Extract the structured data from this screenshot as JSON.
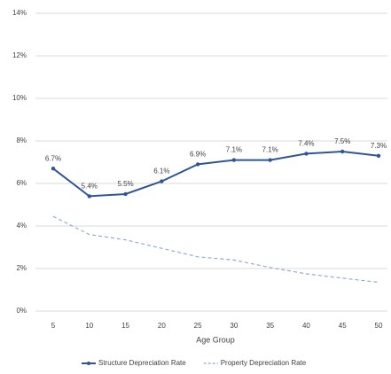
{
  "chart_data": {
    "type": "line",
    "x_label": "Age Group",
    "categories": [
      "5",
      "10",
      "15",
      "20",
      "25",
      "30",
      "35",
      "40",
      "45",
      "50"
    ],
    "series": [
      {
        "name": "Structure Depreciation Rate",
        "color": "#2f5597",
        "dashed": false,
        "markers": true,
        "values": [
          6.7,
          5.4,
          5.5,
          6.1,
          6.9,
          7.1,
          7.1,
          7.4,
          7.5,
          7.3
        ],
        "value_labels": [
          "6.7%",
          "5.4%",
          "5.5%",
          "6.1%",
          "6.9%",
          "7.1%",
          "7.1%",
          "7.4%",
          "7.5%",
          "7.3%"
        ]
      },
      {
        "name": "Property Depreciation Rate",
        "color": "#8faadc",
        "dashed": true,
        "markers": false,
        "values": [
          4.45,
          3.6,
          3.35,
          2.95,
          2.55,
          2.4,
          2.05,
          1.75,
          1.55,
          1.35
        ]
      }
    ],
    "ylim": [
      0,
      14
    ],
    "yticks": [
      {
        "value": 0,
        "label": "0%"
      },
      {
        "value": 2,
        "label": "2%"
      },
      {
        "value": 4,
        "label": "4%"
      },
      {
        "value": 6,
        "label": "6%"
      },
      {
        "value": 8,
        "label": "8%"
      },
      {
        "value": 10,
        "label": "10%"
      },
      {
        "value": 12,
        "label": "12%"
      },
      {
        "value": 14,
        "label": "14%"
      }
    ],
    "grid": true
  }
}
